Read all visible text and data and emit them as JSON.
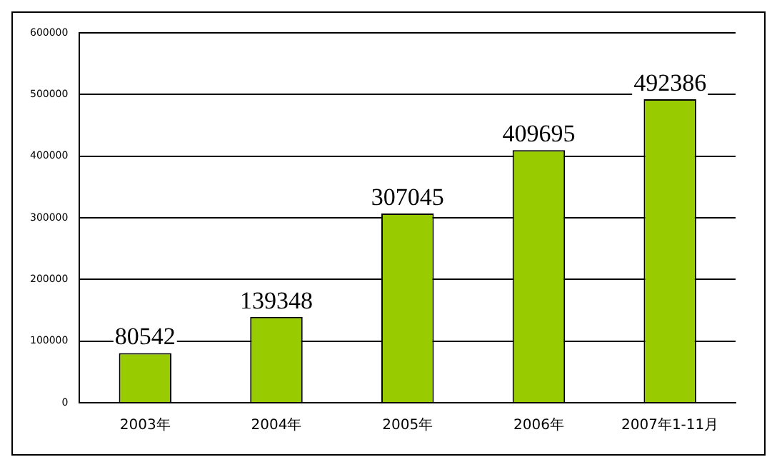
{
  "chart_data": {
    "type": "bar",
    "categories": [
      "2003年",
      "2004年",
      "2005年",
      "2006年",
      "2007年1-11月"
    ],
    "values": [
      80542,
      139348,
      307045,
      409695,
      492386
    ],
    "color": "#99cc00",
    "ylim": [
      0,
      600000
    ],
    "yticks": [
      0,
      100000,
      200000,
      300000,
      400000,
      500000,
      600000
    ],
    "grid": "y",
    "data_labels": true
  }
}
